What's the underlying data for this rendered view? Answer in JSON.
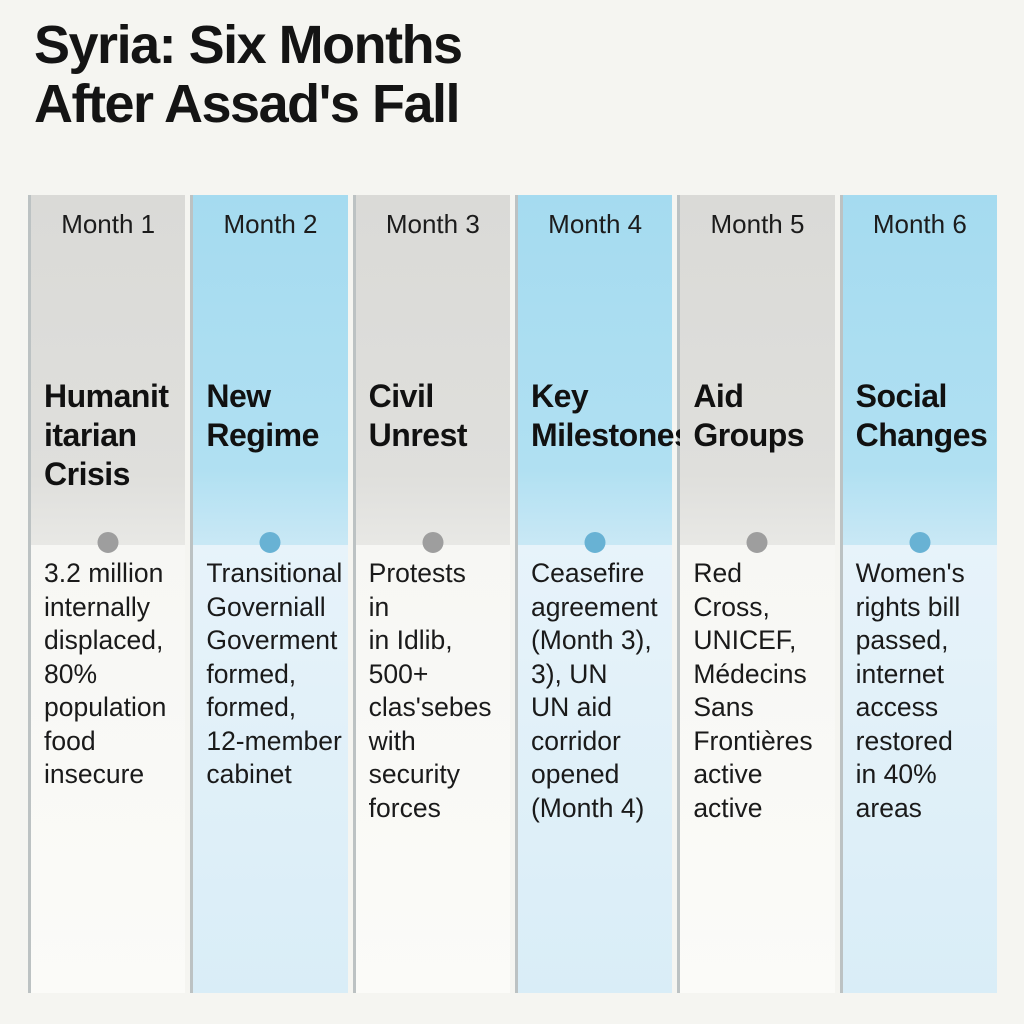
{
  "title": "Syria: Six Months\nAfter Assad's Fall",
  "colors": {
    "background": "#f5f5f1",
    "column_gray_header": "#dcdcd9",
    "column_blue_header": "#a8ddf1",
    "panel_gray_light": "#fafaf7",
    "panel_blue_light": "#ddeff8",
    "dot_gray": "#9e9e9e",
    "dot_blue": "#68b2d4",
    "text": "#171717"
  },
  "columns": [
    {
      "month": "Month 1",
      "theme": "gray",
      "category": "Humanit\nitarian\nCrisis",
      "details": "3.2 million\ninternally\ndisplaced,\n80%\npopulation\nfood\ninsecure"
    },
    {
      "month": "Month 2",
      "theme": "blue",
      "category": "New\nRegime",
      "details": "Transitional\nGoverniall\nGoverment\nformed,\nformed,\n12-member\ncabinet"
    },
    {
      "month": "Month 3",
      "theme": "gray",
      "category": "Civil\nUnrest",
      "details": "Protests\nin\nin Idlib,\n500+\nclas'sebes\nwith\nsecurity\nforces"
    },
    {
      "month": "Month 4",
      "theme": "blue",
      "category": "Key\nMilestones",
      "details": "Ceasefire\nagreement\n(Month 3),\n3), UN\nUN aid\ncorridor\nopened\n(Month 4)"
    },
    {
      "month": "Month 5",
      "theme": "gray",
      "category": "Aid\nGroups",
      "details": "Red\nCross,\nUNICEF,\nMédecins\nSans\nFrontières\nactive\nactive"
    },
    {
      "month": "Month 6",
      "theme": "blue",
      "category": "Social\nChanges",
      "details": "Women's\nrights bill\npassed,\ninternet\naccess\nrestored\nin 40%\nareas"
    }
  ]
}
